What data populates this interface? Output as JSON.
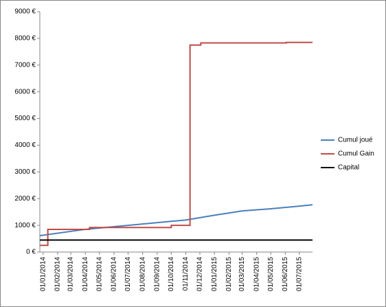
{
  "chart_data": {
    "type": "line",
    "xlim": [
      "25/12/2013",
      "29/07/2015"
    ],
    "xticks": [
      "01/01/2014",
      "01/02/2014",
      "01/03/2014",
      "01/04/2014",
      "01/05/2014",
      "01/06/2014",
      "01/07/2014",
      "01/08/2014",
      "01/09/2014",
      "01/10/2014",
      "01/11/2014",
      "01/12/2014",
      "01/01/2015",
      "01/02/2015",
      "01/03/2015",
      "01/04/2015",
      "01/05/2015",
      "01/06/2015",
      "01/07/2015"
    ],
    "ylim": [
      0,
      9000
    ],
    "yticks": [
      {
        "value": 0,
        "label": "0 €"
      },
      {
        "value": 1000,
        "label": "1000 €"
      },
      {
        "value": 2000,
        "label": "2000 €"
      },
      {
        "value": 3000,
        "label": "3000 €"
      },
      {
        "value": 4000,
        "label": "4000 €"
      },
      {
        "value": 5000,
        "label": "5000 €"
      },
      {
        "value": 6000,
        "label": "6000 €"
      },
      {
        "value": 7000,
        "label": "7000 €"
      },
      {
        "value": 8000,
        "label": "8000 €"
      },
      {
        "value": 9000,
        "label": "9000 €"
      }
    ],
    "grid": false,
    "legend": "right",
    "series": [
      {
        "name": "Cumul joué",
        "color": "#4a7ebb",
        "x": [
          "25/12/2013",
          "01/04/2014",
          "01/07/2014",
          "01/10/2014",
          "01/11/2014",
          "01/01/2015",
          "01/03/2015",
          "01/05/2015",
          "01/07/2015",
          "29/07/2015"
        ],
        "values": [
          615,
          850,
          1000,
          1150,
          1200,
          1380,
          1540,
          1620,
          1720,
          1770
        ]
      },
      {
        "name": "Cumul Gain",
        "color": "#be4b48",
        "x": [
          "25/12/2013",
          "11/01/2014",
          "11/01/2014",
          "10/04/2014",
          "10/04/2014",
          "01/10/2014",
          "01/10/2014",
          "10/11/2014",
          "10/11/2014",
          "03/12/2014",
          "03/12/2014",
          "03/06/2015",
          "03/06/2015",
          "29/07/2015"
        ],
        "values": [
          250,
          250,
          850,
          850,
          920,
          920,
          1000,
          1000,
          7750,
          7750,
          7830,
          7830,
          7850,
          7850
        ]
      },
      {
        "name": "Capital",
        "color": "#000000",
        "x": [
          "25/12/2013",
          "29/07/2015"
        ],
        "values": [
          450,
          450
        ]
      }
    ]
  }
}
